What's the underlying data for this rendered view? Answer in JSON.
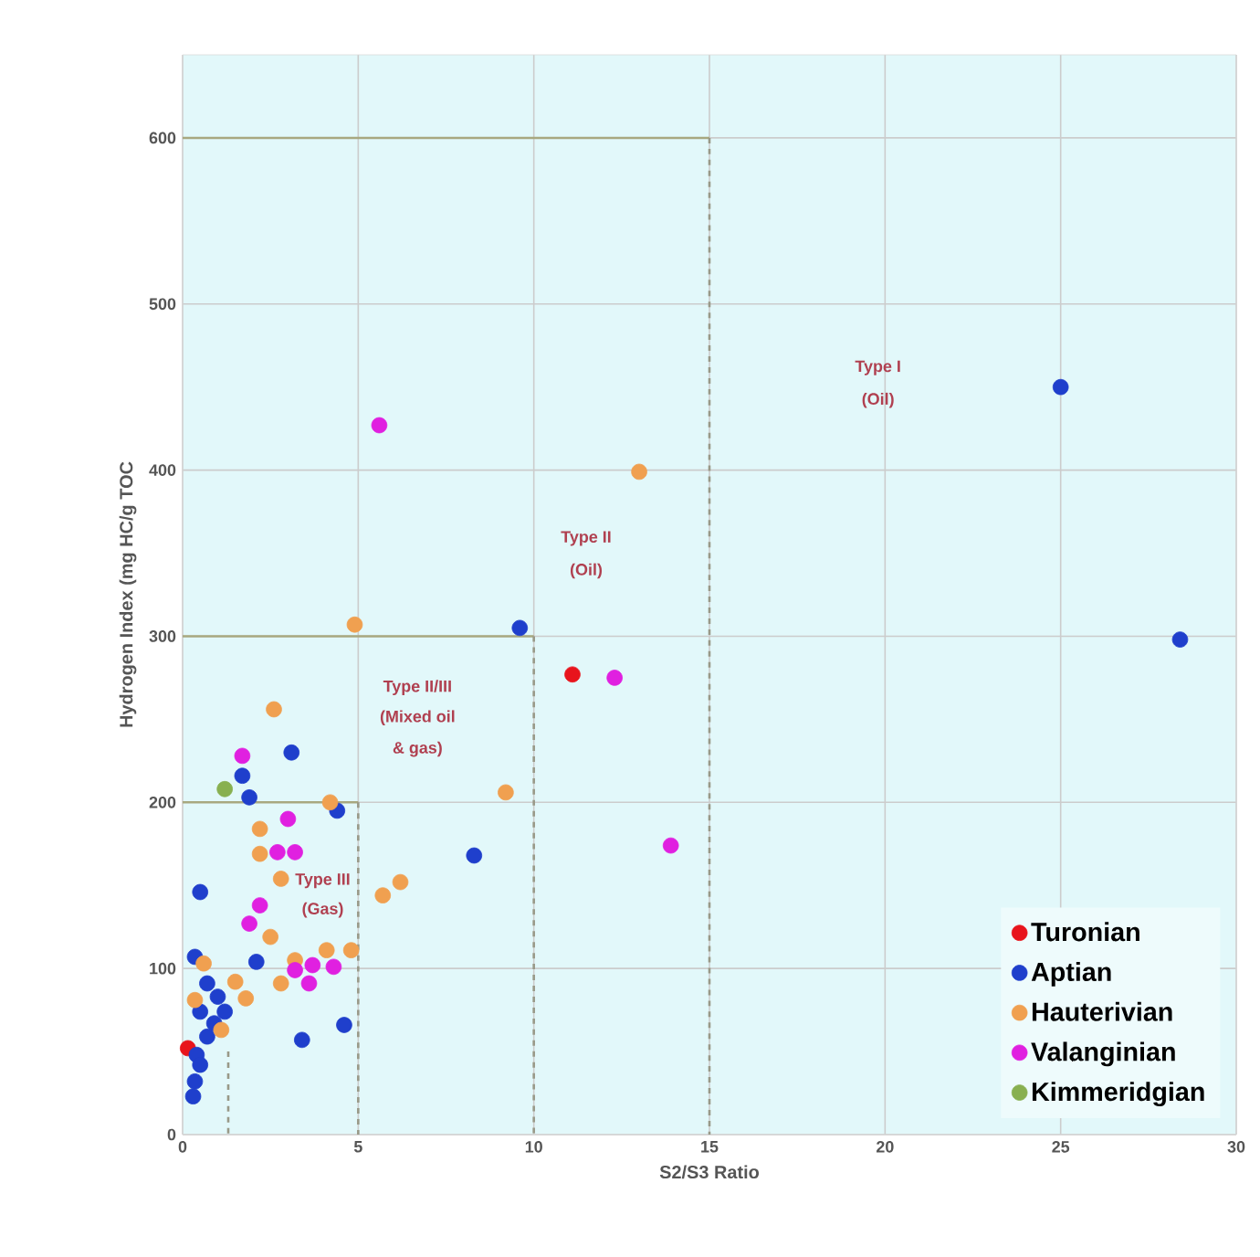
{
  "chart_data": {
    "type": "scatter",
    "xlabel": "S2/S3 Ratio",
    "ylabel": "Hydrogen Index (mg HC/g TOC",
    "xlim": [
      0,
      30
    ],
    "ylim": [
      0,
      650
    ],
    "xticks": [
      0,
      5,
      10,
      15,
      20,
      25,
      30
    ],
    "yticks": [
      0,
      100,
      200,
      300,
      400,
      500,
      600
    ],
    "grid": true,
    "legend": "bottom right",
    "series": [
      {
        "name": "Turonian",
        "color": "#e8141c",
        "x": [
          11.1,
          0.15
        ],
        "values": [
          277,
          52
        ]
      },
      {
        "name": "Aptian",
        "color": "#1f3fcc",
        "x": [
          25,
          28.4,
          9.6,
          8.3,
          3.1,
          1.7,
          1.9,
          4.4,
          0.5,
          2.1,
          3.4,
          4.6,
          0.35,
          0.7,
          1.0,
          1.2,
          0.5,
          0.7,
          0.4,
          0.5,
          0.35,
          0.3,
          0.9
        ],
        "values": [
          450,
          298,
          305,
          168,
          230,
          216,
          203,
          195,
          146,
          104,
          57,
          66,
          107,
          91,
          83,
          74,
          74,
          59,
          48,
          42,
          32,
          23,
          67
        ]
      },
      {
        "name": "Hauterivian",
        "color": "#f0a050",
        "x": [
          13.0,
          4.9,
          2.6,
          9.2,
          4.2,
          2.2,
          2.2,
          2.8,
          5.7,
          6.2,
          2.5,
          3.2,
          4.1,
          4.8,
          2.8,
          1.5,
          1.8,
          0.6,
          0.35,
          1.1
        ],
        "values": [
          399,
          307,
          256,
          206,
          200,
          184,
          169,
          154,
          144,
          152,
          119,
          105,
          111,
          111,
          91,
          92,
          82,
          103,
          81,
          63
        ]
      },
      {
        "name": "Valanginian",
        "color": "#e020e0",
        "x": [
          5.6,
          12.3,
          13.9,
          1.7,
          3.0,
          2.7,
          3.2,
          2.2,
          1.9,
          3.2,
          3.7,
          4.3,
          3.6
        ],
        "values": [
          427,
          275,
          174,
          228,
          190,
          170,
          170,
          138,
          127,
          99,
          102,
          101,
          91
        ]
      },
      {
        "name": "Kimmeridgian",
        "color": "#88b050",
        "x": [
          1.2
        ],
        "values": [
          208
        ]
      },
      {
        "type": "line",
        "marker": "none",
        "color": "#a8a880",
        "line_style": "solid",
        "x": [
          0,
          15
        ],
        "values": [
          600,
          600
        ]
      },
      {
        "type": "line",
        "marker": "none",
        "color": "#999988",
        "line_style": "dashed",
        "x": [
          15,
          15
        ],
        "values": [
          600,
          0
        ]
      },
      {
        "type": "line",
        "marker": "none",
        "color": "#a8a880",
        "line_style": "solid",
        "x": [
          0,
          10
        ],
        "values": [
          300,
          300
        ]
      },
      {
        "type": "line",
        "marker": "none",
        "color": "#999988",
        "line_style": "dashed",
        "x": [
          10,
          10
        ],
        "values": [
          300,
          0
        ]
      },
      {
        "type": "line",
        "marker": "none",
        "color": "#a8a880",
        "line_style": "solid",
        "x": [
          0,
          5
        ],
        "values": [
          200,
          200
        ]
      },
      {
        "type": "line",
        "marker": "none",
        "color": "#999988",
        "line_style": "dashed",
        "x": [
          5,
          5
        ],
        "values": [
          200,
          0
        ]
      },
      {
        "type": "line",
        "marker": "none",
        "color": "#999988",
        "line_style": "dashed",
        "x": [
          1.3,
          1.3
        ],
        "values": [
          50,
          0
        ]
      }
    ],
    "annotations": [
      "Type I",
      "(Oil)",
      "Type II",
      "(Oil)",
      "Type II/III",
      "(Mixed oil",
      "& gas)",
      "Type III",
      "(Gas)"
    ]
  }
}
